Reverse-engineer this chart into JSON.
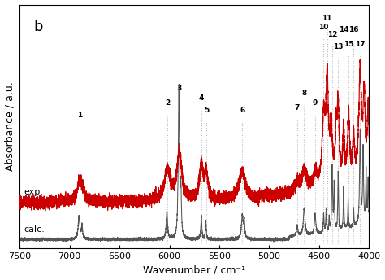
{
  "title_label": "b",
  "xlabel": "Wavenumber / cm⁻¹",
  "ylabel": "Absorbance / a.u.",
  "xlim": [
    7500,
    4000
  ],
  "exp_label": "exp.",
  "calc_label": "calc.",
  "exp_color": "#cc0000",
  "calc_color": "#555555",
  "band_numbers": [
    1,
    2,
    3,
    4,
    5,
    6,
    7,
    8,
    9,
    10,
    11,
    12,
    13,
    14,
    15,
    16,
    17
  ],
  "band_positions": [
    6900,
    6020,
    5900,
    5680,
    5630,
    5270,
    4720,
    4650,
    4540,
    4455,
    4420,
    4370,
    4310,
    4255,
    4205,
    4155,
    4090
  ],
  "label_heights_axes": [
    0.53,
    0.58,
    0.64,
    0.6,
    0.55,
    0.55,
    0.56,
    0.62,
    0.58,
    0.89,
    0.93,
    0.86,
    0.81,
    0.88,
    0.82,
    0.88,
    0.82
  ],
  "dotted_line_color": "#bbbbbb",
  "background_color": "#ffffff"
}
